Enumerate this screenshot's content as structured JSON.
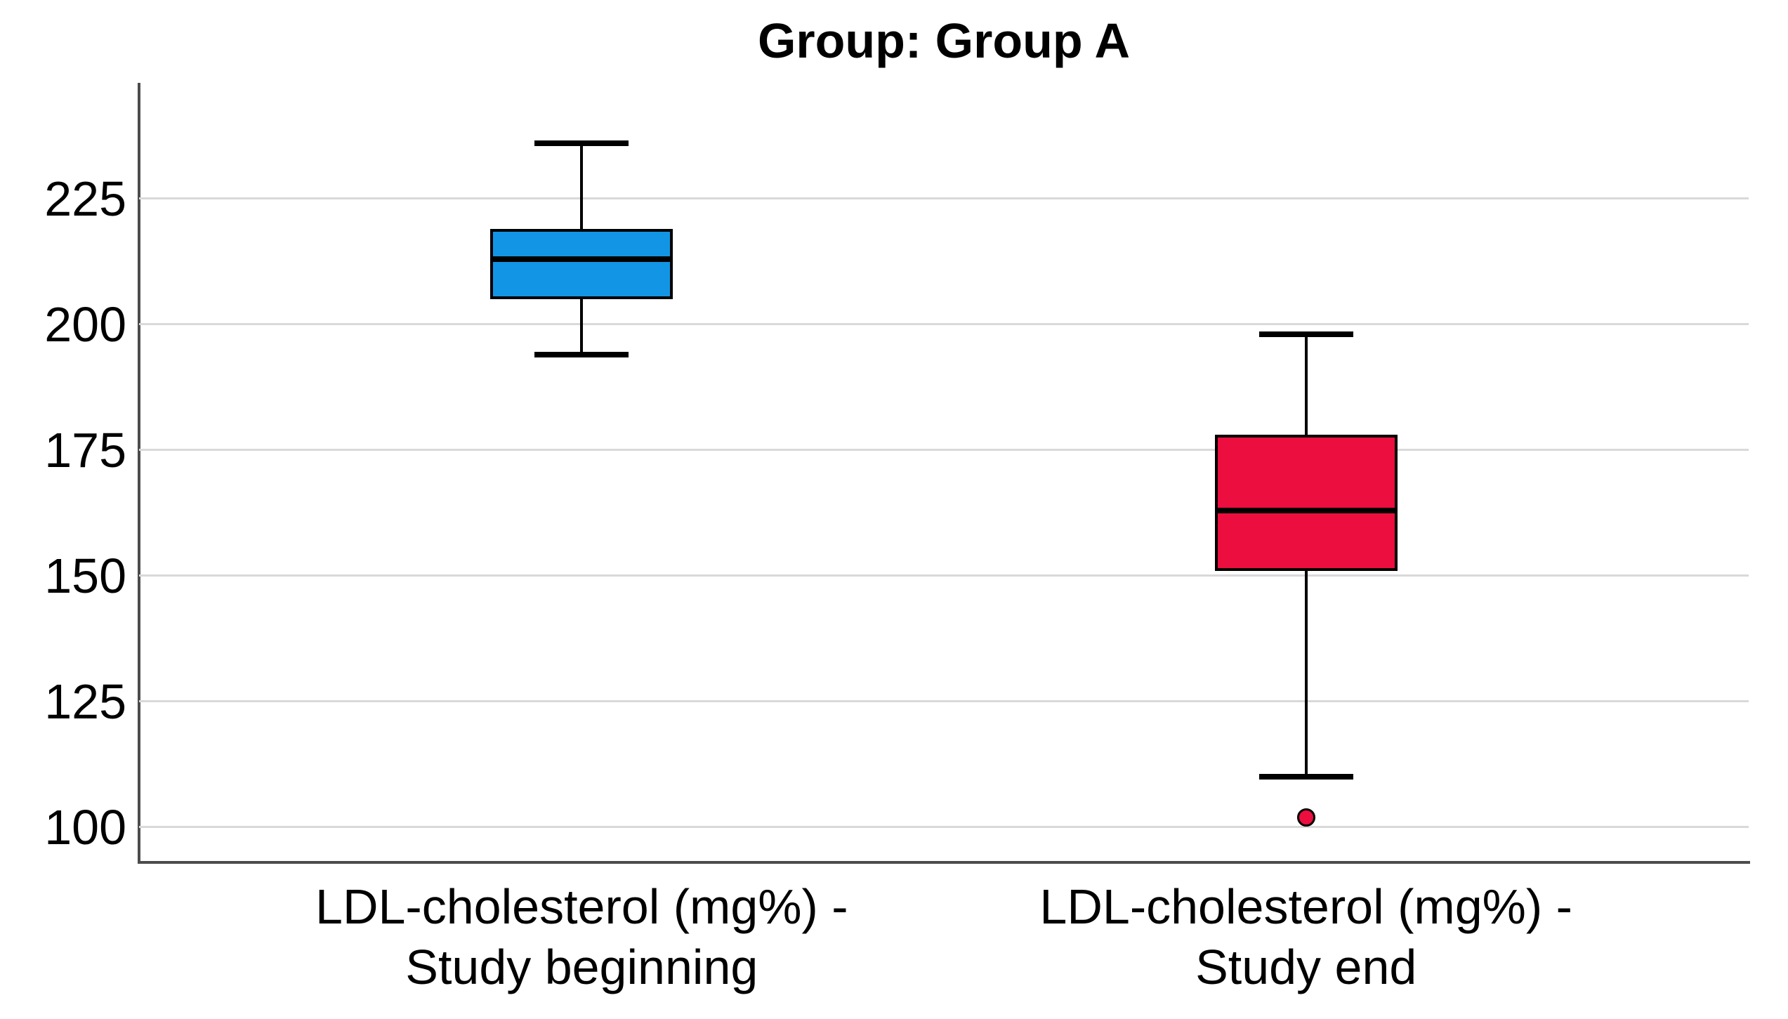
{
  "title": "Group: Group A",
  "chart_data": {
    "type": "boxplot",
    "title": "Group: Group A",
    "xlabel": "",
    "ylabel": "",
    "ylim": [
      93,
      248
    ],
    "yticks": [
      225,
      200,
      175,
      150,
      125,
      100
    ],
    "grid": "horizontal",
    "legend": "none",
    "categories": [
      "LDL-cholesterol (mg%) -\nStudy beginning",
      "LDL-cholesterol (mg%) -\nStudy end"
    ],
    "series": [
      {
        "name": "LDL-cholesterol (mg%) - Study beginning",
        "color": "#1295e5",
        "whisker_low": 194,
        "q1": 205,
        "median": 213,
        "q3": 219,
        "whisker_high": 236,
        "outliers": []
      },
      {
        "name": "LDL-cholesterol (mg%) - Study end",
        "color": "#ec0e3e",
        "whisker_low": 110,
        "q1": 151,
        "median": 163,
        "q3": 178,
        "whisker_high": 198,
        "outliers": [
          102
        ]
      }
    ]
  },
  "colors": {
    "background": "#ffffff",
    "axis": "#4c4c4c",
    "gridline": "#d9d9d9",
    "box_outline": "#000000",
    "text": "#000000",
    "series_beginning": "#1295e5",
    "series_end": "#ec0e3e"
  }
}
